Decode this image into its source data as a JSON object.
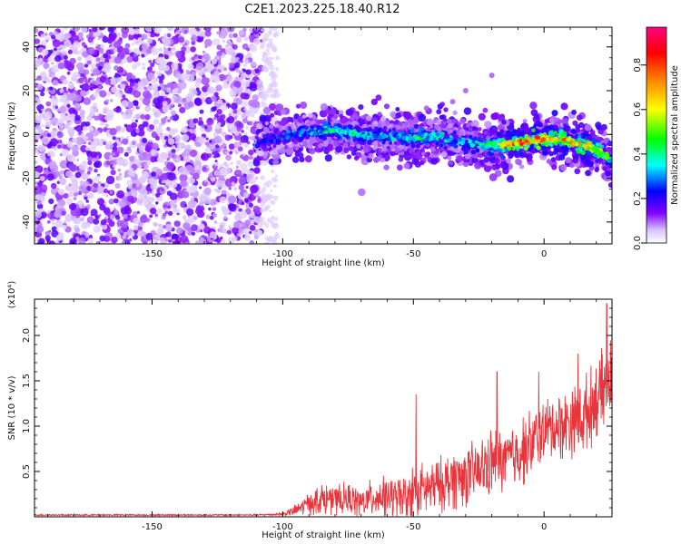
{
  "chart_data": [
    {
      "type": "heatmap",
      "title": "C2E1.2023.225.18.40.R12",
      "xlabel": "Height of straight line (km)",
      "ylabel": "Frequency (Hz)",
      "xlim": [
        -195,
        26
      ],
      "ylim": [
        -50,
        49
      ],
      "xticks": [
        -150,
        -100,
        -50,
        0
      ],
      "yticks": [
        -40,
        -20,
        0,
        20,
        40
      ],
      "colorbar": {
        "label": "Normalized spectral amplitude",
        "range": [
          0.0,
          0.97
        ],
        "ticks": [
          "0.0",
          "0.2",
          "0.4",
          "0.6",
          "0.8"
        ],
        "colors": [
          "#ffffff",
          "#7f00ff",
          "#0000ff",
          "#00ffff",
          "#00ff00",
          "#ffff00",
          "#ff7f00",
          "#ff0000",
          "#ff0080"
        ]
      },
      "noise_region_x": [
        -195,
        -108
      ],
      "ridge": {
        "x": [
          -110,
          -100,
          -90,
          -80,
          -70,
          -60,
          -50,
          -40,
          -30,
          -20,
          -10,
          0,
          10,
          20,
          26
        ],
        "y": [
          -4,
          -1,
          1,
          2,
          0,
          -1,
          -2,
          -1,
          -4,
          -5,
          -4,
          -2,
          -3,
          -7,
          -12
        ],
        "peak_amplitude": [
          0.25,
          0.3,
          0.35,
          0.45,
          0.4,
          0.35,
          0.45,
          0.4,
          0.35,
          0.5,
          0.85,
          0.8,
          0.75,
          0.65,
          0.45
        ]
      },
      "grid": false,
      "legend": "colorbar-right"
    },
    {
      "type": "line",
      "title": "",
      "xlabel": "Height of straight line (km)",
      "ylabel": "SNR (10 * v/v)",
      "scale_label": "(x10⁴)",
      "xlim": [
        -195,
        26
      ],
      "ylim": [
        0,
        2.4
      ],
      "xticks": [
        -150,
        -100,
        -50,
        0
      ],
      "yticks": [
        0.5,
        1.0,
        1.5,
        2.0
      ],
      "color": "#e8343a",
      "envelope": {
        "x": [
          -195,
          -150,
          -110,
          -100,
          -95,
          -90,
          -85,
          -80,
          -75,
          -70,
          -65,
          -60,
          -55,
          -50,
          -45,
          -40,
          -35,
          -30,
          -25,
          -20,
          -15,
          -10,
          -5,
          0,
          5,
          10,
          15,
          20,
          26
        ],
        "mean": [
          0.02,
          0.02,
          0.02,
          0.03,
          0.07,
          0.15,
          0.2,
          0.18,
          0.2,
          0.15,
          0.22,
          0.22,
          0.2,
          0.28,
          0.3,
          0.35,
          0.42,
          0.45,
          0.5,
          0.6,
          0.62,
          0.7,
          0.8,
          0.95,
          1.0,
          1.05,
          1.1,
          1.3,
          1.5
        ],
        "spread": [
          0.01,
          0.01,
          0.01,
          0.02,
          0.08,
          0.15,
          0.2,
          0.2,
          0.2,
          0.2,
          0.25,
          0.25,
          0.28,
          0.35,
          0.35,
          0.35,
          0.4,
          0.4,
          0.4,
          0.45,
          0.4,
          0.45,
          0.45,
          0.4,
          0.45,
          0.45,
          0.5,
          0.5,
          0.55
        ]
      },
      "peaks": [
        {
          "x": -49,
          "y": 1.35
        },
        {
          "x": -18,
          "y": 1.6
        },
        {
          "x": -2,
          "y": 1.6
        },
        {
          "x": 13,
          "y": 1.8
        },
        {
          "x": 24,
          "y": 2.35
        }
      ],
      "grid": false
    }
  ]
}
